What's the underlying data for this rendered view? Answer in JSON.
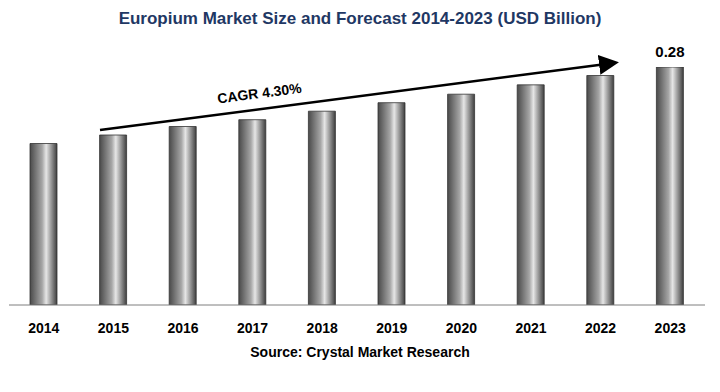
{
  "chart_data": {
    "type": "bar",
    "title": "Europium Market Size and Forecast 2014-2023 (USD Billion)",
    "categories": [
      "2014",
      "2015",
      "2016",
      "2017",
      "2018",
      "2019",
      "2020",
      "2021",
      "2022",
      "2023"
    ],
    "values": [
      0.19,
      0.2,
      0.21,
      0.218,
      0.228,
      0.238,
      0.248,
      0.259,
      0.27,
      0.28
    ],
    "value_labels": [
      null,
      null,
      null,
      null,
      null,
      null,
      null,
      null,
      null,
      "0.28"
    ],
    "data_labels": true,
    "color": "#a6a6a6",
    "ylim": [
      0,
      0.28
    ],
    "yticks": [],
    "tick_labels": "x",
    "grid": false,
    "annotations": [
      "CAGR 4.30%"
    ],
    "source": "Source: Crystal Market Research"
  }
}
